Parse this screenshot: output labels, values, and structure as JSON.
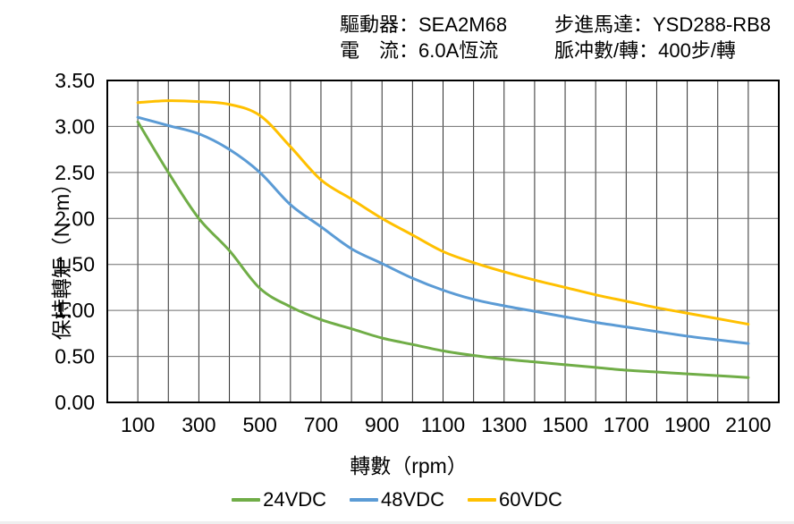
{
  "header": {
    "col1": {
      "line1": "驅動器：SEA2M68",
      "line2": "電　流：6.0A恆流"
    },
    "col2": {
      "line1": "步進馬達：YSD288-RB8",
      "line2": "脈冲數/轉：400步/轉"
    }
  },
  "chart_data": {
    "type": "line",
    "title": "",
    "xlabel": "轉數（rpm）",
    "ylabel": "保持轉矩（N. m）",
    "x": [
      100,
      200,
      300,
      400,
      500,
      600,
      700,
      800,
      900,
      1000,
      1100,
      1200,
      1300,
      1400,
      1500,
      1600,
      1700,
      1800,
      1900,
      2000,
      2100
    ],
    "series": [
      {
        "name": "24VDC",
        "color": "#70AD47",
        "values": [
          3.05,
          2.5,
          2.0,
          1.65,
          1.24,
          1.04,
          0.9,
          0.8,
          0.7,
          0.63,
          0.56,
          0.51,
          0.47,
          0.44,
          0.41,
          0.38,
          0.35,
          0.33,
          0.31,
          0.29,
          0.27
        ]
      },
      {
        "name": "48VDC",
        "color": "#5B9BD5",
        "values": [
          3.1,
          3.01,
          2.92,
          2.75,
          2.5,
          2.15,
          1.91,
          1.67,
          1.51,
          1.35,
          1.22,
          1.12,
          1.05,
          0.99,
          0.93,
          0.87,
          0.82,
          0.77,
          0.72,
          0.68,
          0.64
        ]
      },
      {
        "name": "60VDC",
        "color": "#FFC000",
        "values": [
          3.26,
          3.28,
          3.27,
          3.24,
          3.12,
          2.78,
          2.42,
          2.21,
          2.0,
          1.82,
          1.64,
          1.52,
          1.42,
          1.33,
          1.25,
          1.17,
          1.1,
          1.03,
          0.97,
          0.91,
          0.85
        ]
      }
    ],
    "xlim": [
      0,
      2200
    ],
    "ylim": [
      0,
      3.5
    ],
    "x_ticks": [
      "100",
      "300",
      "500",
      "700",
      "900",
      "1100",
      "1300",
      "1500",
      "1700",
      "1900",
      "2100"
    ],
    "y_ticks": [
      "0.00",
      "0.50",
      "1.00",
      "1.50",
      "2.00",
      "2.50",
      "3.00",
      "3.50"
    ],
    "grid": {
      "x_step": 100,
      "y_step": 0.5,
      "vline_color": "#2e2e2e",
      "hline_color": "#6e6e6e",
      "border_color": "#000000"
    },
    "legend_position": "bottom",
    "text_color": "#000000"
  }
}
